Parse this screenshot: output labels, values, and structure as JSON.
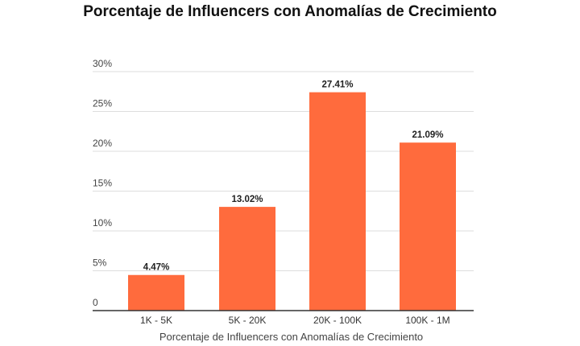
{
  "chart_data": {
    "type": "bar",
    "title": "Porcentaje de Influencers con Anomalías de Crecimiento",
    "xlabel": "Porcentaje de Influencers con Anomalías de Crecimiento",
    "ylabel": "",
    "categories": [
      "1K - 5K",
      "5K - 20K",
      "20K - 100K",
      "100K - 1M"
    ],
    "values": [
      4.47,
      13.02,
      27.41,
      21.09
    ],
    "value_labels": [
      "4.47%",
      "13.02%",
      "27.41%",
      "21.09%"
    ],
    "ylim": [
      0,
      30
    ],
    "yticks": [
      0,
      5,
      10,
      15,
      20,
      25,
      30
    ],
    "ytick_labels": [
      "0",
      "5%",
      "10%",
      "15%",
      "20%",
      "25%",
      "30%"
    ],
    "grid": true,
    "legend": "none",
    "bar_color": "#ff6b3d",
    "grid_color": "#dddddd",
    "axis_color": "#333333"
  }
}
